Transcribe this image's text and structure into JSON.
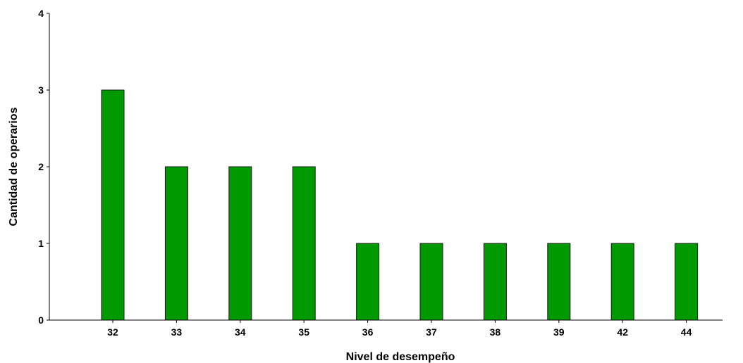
{
  "chart_data": {
    "type": "bar",
    "title": "",
    "xlabel": "Nivel de desempeño",
    "ylabel": "Cantidad de operarios",
    "categories": [
      "32",
      "33",
      "34",
      "35",
      "36",
      "37",
      "38",
      "39",
      "42",
      "44"
    ],
    "values": [
      3,
      2,
      2,
      2,
      1,
      1,
      1,
      1,
      1,
      1
    ],
    "ylim": [
      0,
      4
    ],
    "yticks": [
      0,
      1,
      2,
      3,
      4
    ],
    "grid": false,
    "legend": "none",
    "colors": {
      "bar_fill": "#009900",
      "bar_stroke": "#1a1a1a",
      "axis": "#000000"
    }
  }
}
